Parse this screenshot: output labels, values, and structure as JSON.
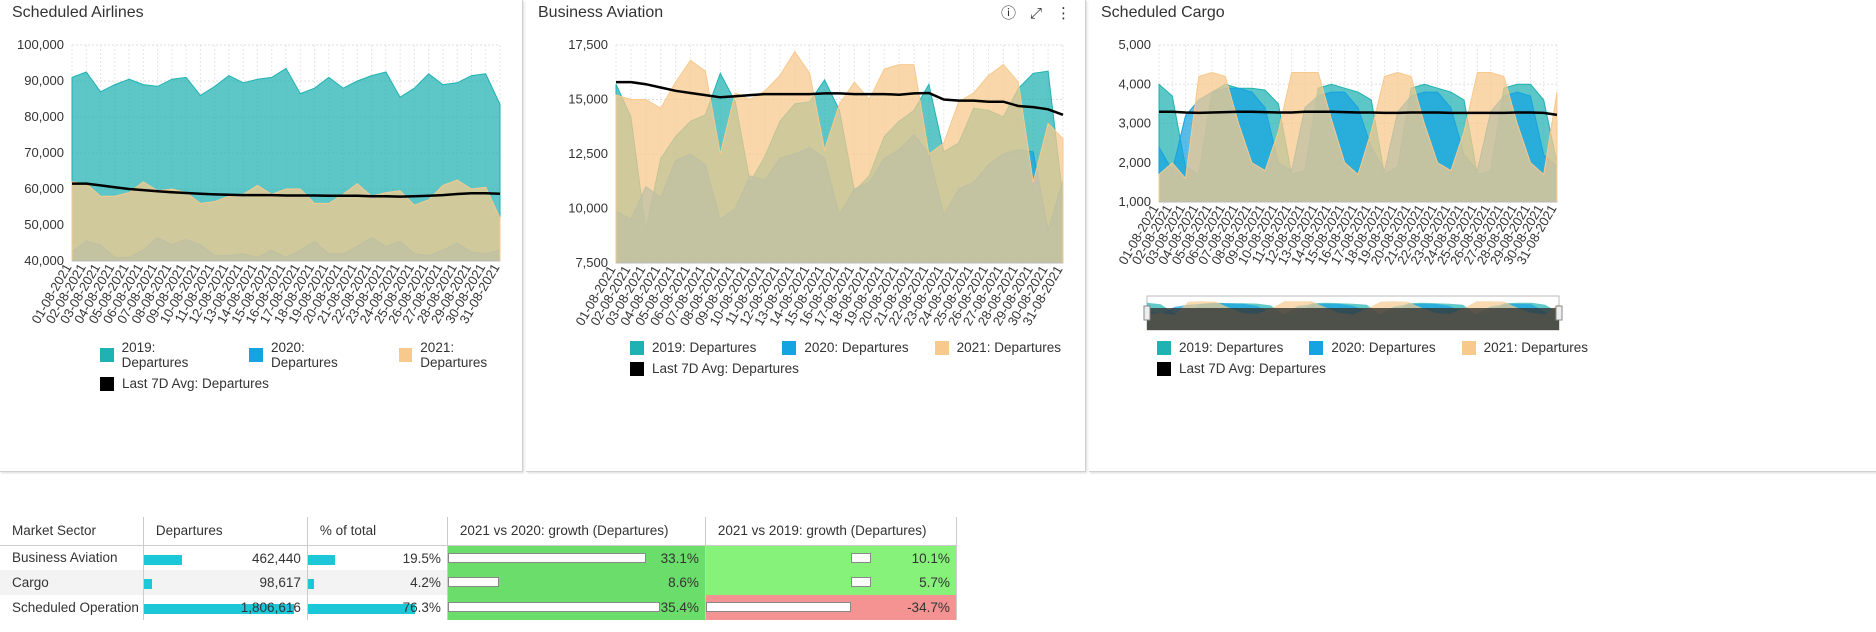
{
  "panels": [
    {
      "title": "Scheduled Airlines",
      "chart_data": {
        "type": "area",
        "title": "Scheduled Airlines",
        "x": [
          "01-08-2021",
          "02-08-2021",
          "03-08-2021",
          "04-08-2021",
          "05-08-2021",
          "06-08-2021",
          "07-08-2021",
          "08-08-2021",
          "09-08-2021",
          "10-08-2021",
          "11-08-2021",
          "12-08-2021",
          "13-08-2021",
          "14-08-2021",
          "15-08-2021",
          "16-08-2021",
          "17-08-2021",
          "18-08-2021",
          "19-08-2021",
          "20-08-2021",
          "21-08-2021",
          "22-08-2021",
          "23-08-2021",
          "24-08-2021",
          "25-08-2021",
          "26-08-2021",
          "27-08-2021",
          "28-08-2021",
          "29-08-2021",
          "30-08-2021",
          "31-08-2021"
        ],
        "ylim": [
          40000,
          100000
        ],
        "yticks": [
          "40,000",
          "50,000",
          "60,000",
          "70,000",
          "80,000",
          "90,000",
          "100,000"
        ],
        "series": [
          {
            "name": "2019: Departures",
            "type": "area",
            "values": [
              91000,
              92500,
              87000,
              89000,
              90500,
              89000,
              88500,
              90500,
              91000,
              86000,
              88500,
              91500,
              89500,
              90500,
              91000,
              93500,
              86500,
              88000,
              91000,
              88000,
              90000,
              91500,
              92500,
              85500,
              88000,
              92000,
              89000,
              89500,
              91500,
              92000,
              83500
            ]
          },
          {
            "name": "2020: Departures",
            "type": "area",
            "values": [
              42500,
              45500,
              44500,
              41000,
              41000,
              43000,
              46500,
              44500,
              46000,
              44500,
              41500,
              41500,
              42000,
              41000,
              43000,
              41000,
              43000,
              45500,
              42000,
              42000,
              44000,
              46500,
              44000,
              45500,
              42000,
              41500,
              43000,
              45000,
              42500,
              42000,
              43000
            ]
          },
          {
            "name": "2021: Departures",
            "type": "area",
            "values": [
              62000,
              61500,
              58000,
              58000,
              59000,
              62000,
              59500,
              60000,
              59000,
              56000,
              56500,
              58000,
              58500,
              61000,
              58500,
              60000,
              60000,
              56000,
              56000,
              58500,
              61500,
              58000,
              59000,
              59500,
              55500,
              57000,
              61000,
              62500,
              60000,
              60500,
              52000
            ]
          },
          {
            "name": "Last 7D Avg: Departures",
            "type": "line",
            "values": [
              61500,
              61500,
              61000,
              60500,
              60000,
              59700,
              59400,
              59100,
              58900,
              58700,
              58500,
              58400,
              58300,
              58300,
              58300,
              58200,
              58200,
              58200,
              58100,
              58100,
              58100,
              58000,
              58000,
              57900,
              58000,
              58100,
              58300,
              58600,
              58800,
              58800,
              58700
            ]
          }
        ]
      }
    },
    {
      "title": "Business Aviation",
      "chart_data": {
        "type": "area",
        "title": "Business Aviation",
        "x": [
          "01-08-2021",
          "02-08-2021",
          "03-08-2021",
          "04-08-2021",
          "05-08-2021",
          "06-08-2021",
          "07-08-2021",
          "08-08-2021",
          "09-08-2021",
          "10-08-2021",
          "11-08-2021",
          "12-08-2021",
          "13-08-2021",
          "14-08-2021",
          "15-08-2021",
          "16-08-2021",
          "17-08-2021",
          "18-08-2021",
          "19-08-2021",
          "20-08-2021",
          "21-08-2021",
          "22-08-2021",
          "23-08-2021",
          "24-08-2021",
          "25-08-2021",
          "26-08-2021",
          "27-08-2021",
          "28-08-2021",
          "29-08-2021",
          "30-08-2021",
          "31-08-2021"
        ],
        "ylim": [
          7500,
          17500
        ],
        "yticks": [
          "7,500",
          "10,000",
          "12,500",
          "15,000",
          "17,500"
        ],
        "series": [
          {
            "name": "2019: Departures",
            "type": "area",
            "values": [
              15700,
              14200,
              9000,
              12300,
              13300,
              14000,
              14300,
              16200,
              14900,
              11200,
              12400,
              14000,
              14800,
              14900,
              15900,
              14500,
              10800,
              11500,
              13300,
              14000,
              14500,
              15700,
              12600,
              13000,
              14600,
              14500,
              14200,
              15500,
              16200,
              16300,
              10500
            ]
          },
          {
            "name": "2020: Departures",
            "type": "area",
            "values": [
              9900,
              9500,
              11000,
              10500,
              12200,
              12500,
              12000,
              9500,
              10000,
              11500,
              11300,
              12300,
              12500,
              12800,
              12300,
              9700,
              10900,
              11200,
              12300,
              12700,
              13400,
              12500,
              9700,
              10900,
              11200,
              12000,
              12500,
              12700,
              12600,
              9000,
              11300
            ]
          },
          {
            "name": "2021: Departures",
            "type": "area",
            "values": [
              15200,
              15000,
              15000,
              14600,
              15800,
              16800,
              16300,
              12500,
              15300,
              15000,
              15400,
              16100,
              17200,
              16200,
              12700,
              14800,
              15800,
              15000,
              16400,
              16600,
              16600,
              12500,
              13000,
              14900,
              15300,
              16100,
              16600,
              15800,
              11200,
              13900,
              13200
            ]
          },
          {
            "name": "Last 7D Avg: Departures",
            "type": "line",
            "values": [
              15800,
              15800,
              15700,
              15550,
              15400,
              15300,
              15200,
              15100,
              15150,
              15200,
              15250,
              15250,
              15250,
              15250,
              15280,
              15280,
              15250,
              15250,
              15250,
              15220,
              15280,
              15300,
              15000,
              14950,
              14950,
              14900,
              14900,
              14700,
              14650,
              14550,
              14300
            ]
          }
        ]
      }
    },
    {
      "title": "Scheduled Cargo",
      "chart_data": {
        "type": "area",
        "title": "Scheduled Cargo",
        "x": [
          "01-08-2021",
          "02-08-2021",
          "03-08-2021",
          "04-08-2021",
          "05-08-2021",
          "06-08-2021",
          "07-08-2021",
          "08-08-2021",
          "09-08-2021",
          "10-08-2021",
          "11-08-2021",
          "12-08-2021",
          "13-08-2021",
          "14-08-2021",
          "15-08-2021",
          "16-08-2021",
          "17-08-2021",
          "18-08-2021",
          "19-08-2021",
          "20-08-2021",
          "21-08-2021",
          "22-08-2021",
          "23-08-2021",
          "24-08-2021",
          "25-08-2021",
          "26-08-2021",
          "27-08-2021",
          "28-08-2021",
          "29-08-2021",
          "30-08-2021",
          "31-08-2021"
        ],
        "ylim": [
          1000,
          5000
        ],
        "yticks": [
          "1,000",
          "2,000",
          "3,000",
          "4,000",
          "5,000"
        ],
        "series": [
          {
            "name": "2019: Departures",
            "type": "area",
            "values": [
              4000,
              3700,
              1900,
              1700,
              3800,
              4000,
              3900,
              3900,
              3850,
              3500,
              1700,
              1800,
              3900,
              4000,
              3900,
              3800,
              3600,
              1700,
              1900,
              3900,
              4000,
              3900,
              3800,
              3600,
              1700,
              1800,
              3900,
              4000,
              4000,
              3600,
              2000
            ]
          },
          {
            "name": "2020: Departures",
            "type": "area",
            "values": [
              2400,
              1800,
              3200,
              3600,
              3800,
              3900,
              3900,
              3800,
              3400,
              2000,
              1800,
              3400,
              3700,
              3800,
              3800,
              3400,
              2400,
              1800,
              3300,
              3700,
              3800,
              3800,
              3400,
              2200,
              1800,
              3300,
              3700,
              3800,
              3700,
              2200,
              1900
            ]
          },
          {
            "name": "2021: Departures",
            "type": "area",
            "values": [
              1700,
              2000,
              1600,
              4200,
              4300,
              4200,
              3000,
              2000,
              1800,
              2800,
              4300,
              4300,
              4300,
              3100,
              2000,
              1700,
              2800,
              4200,
              4300,
              4200,
              3000,
              2000,
              1800,
              2800,
              4300,
              4300,
              4200,
              3000,
              2000,
              1700,
              3800
            ]
          },
          {
            "name": "Last 7D Avg: Departures",
            "type": "line",
            "values": [
              3300,
              3300,
              3280,
              3270,
              3280,
              3290,
              3300,
              3300,
              3290,
              3280,
              3280,
              3300,
              3300,
              3300,
              3290,
              3280,
              3280,
              3270,
              3270,
              3280,
              3280,
              3280,
              3270,
              3270,
              3270,
              3270,
              3270,
              3280,
              3280,
              3270,
              3220
            ]
          }
        ]
      }
    }
  ],
  "colors": {
    "s2019": "#1fb2b2",
    "s2020": "#15a3e2",
    "s2021": "#f7c98d",
    "avg": "#000000",
    "bar": "#1cc7d8",
    "green_strong": "#6bdd6b",
    "green_light": "#86f27a",
    "red": "#f59393"
  },
  "panel_icons": [
    "info-icon",
    "expand-icon",
    "more-vertical-icon"
  ],
  "panel_icon_glyphs": [
    "ⓘ",
    "⤢",
    "⋮"
  ],
  "table": {
    "columns": [
      "Market Sector",
      "Departures",
      "% of total",
      "2021 vs 2020: growth (Departures)",
      "2021 vs 2019: growth (Departures)"
    ],
    "rows": [
      {
        "sector": "Business Aviation",
        "departures": "462,440",
        "departures_value": 462440,
        "pct": "19.5%",
        "pct_value": 19.5,
        "g2020": "33.1%",
        "g2020_value": 33.1,
        "g2019": "10.1%",
        "g2019_value": 10.1
      },
      {
        "sector": "Cargo",
        "departures": "98,617",
        "departures_value": 98617,
        "pct": "4.2%",
        "pct_value": 4.2,
        "g2020": "8.6%",
        "g2020_value": 8.6,
        "g2019": "5.7%",
        "g2019_value": 5.7
      },
      {
        "sector": "Scheduled Operation",
        "departures": "1,806,616",
        "departures_value": 1806616,
        "pct": "76.3%",
        "pct_value": 76.3,
        "g2020": "35.4%",
        "g2020_value": 35.4,
        "g2019": "-34.7%",
        "g2019_value": -34.7
      }
    ]
  }
}
